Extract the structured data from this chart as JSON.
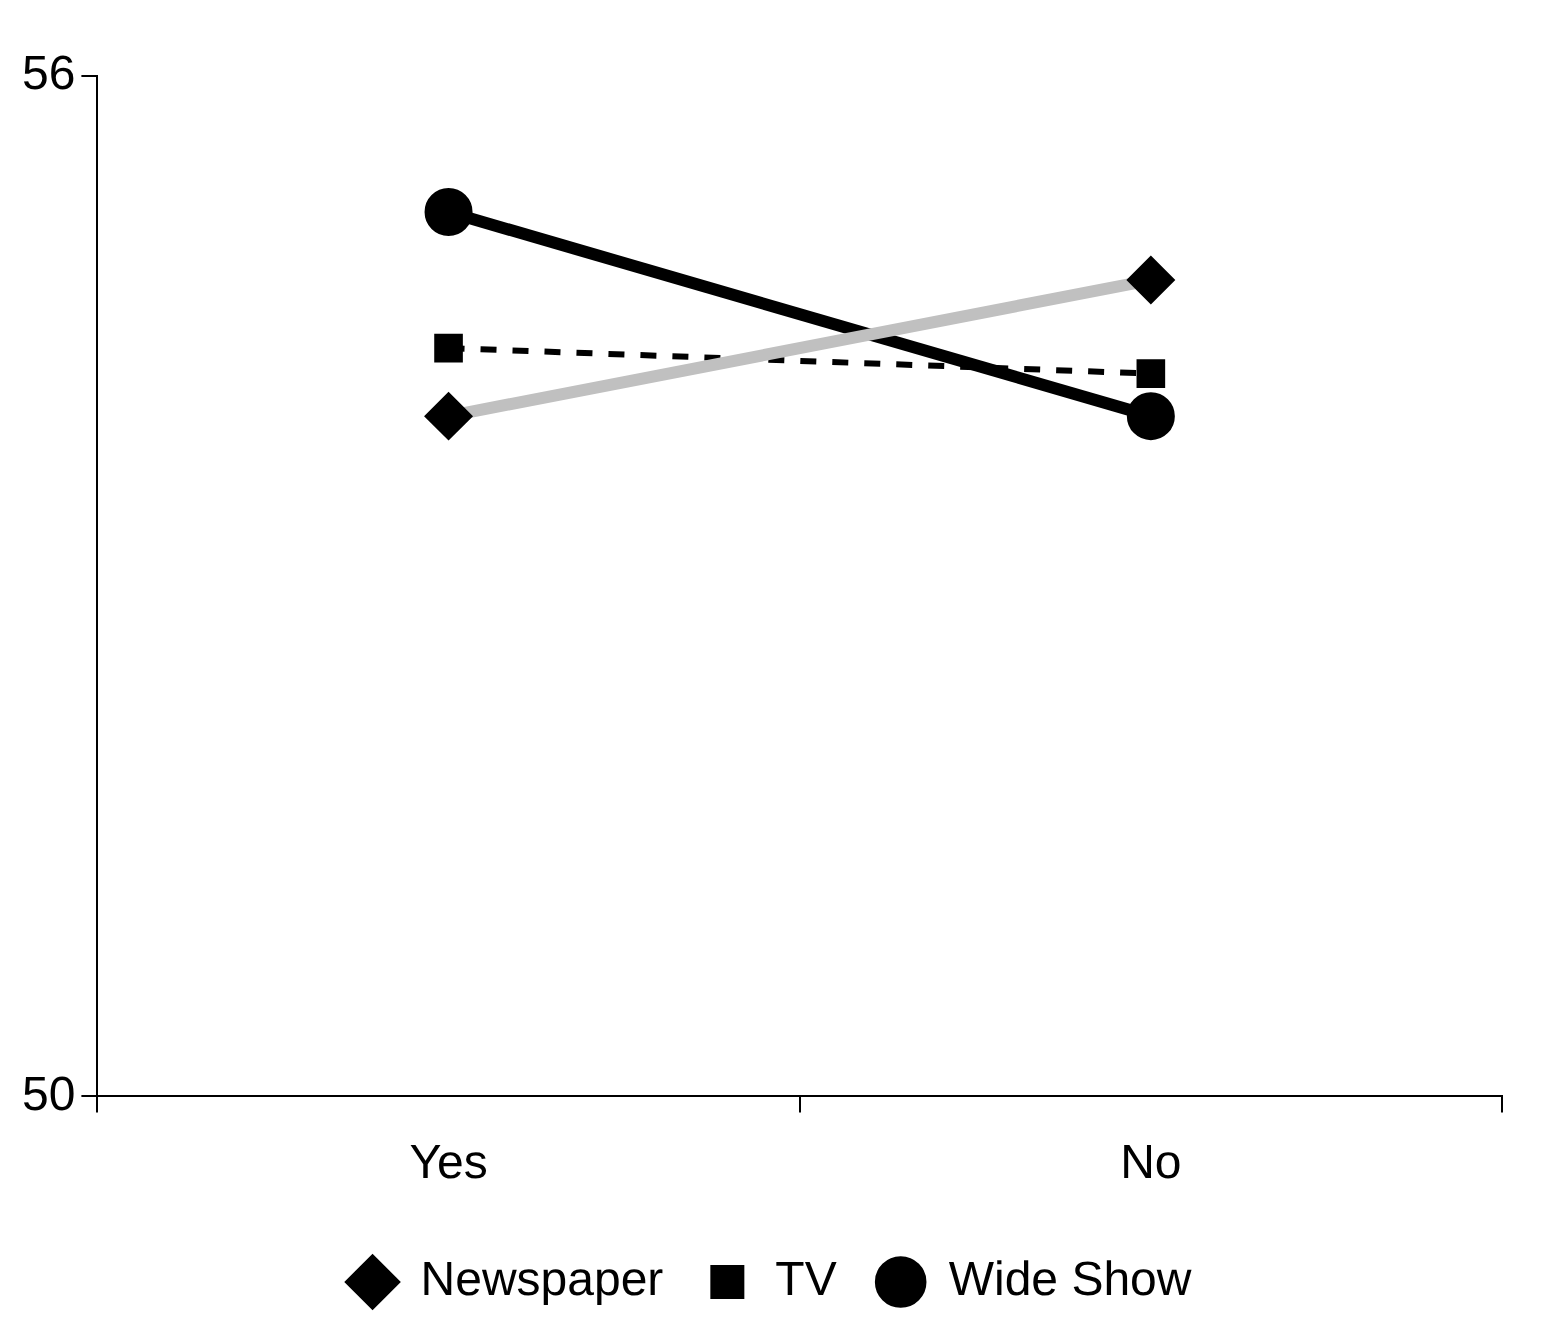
{
  "chart_data": {
    "type": "line",
    "categories": [
      "Yes",
      "No"
    ],
    "ylim": [
      50,
      56
    ],
    "yticks": [
      50,
      56
    ],
    "grid": false,
    "legend": "bottom",
    "series": [
      {
        "name": "Newspaper",
        "color": "#c0c0c0",
        "values": [
          54.0,
          54.8
        ],
        "marker": "diamond",
        "line_style": "solid"
      },
      {
        "name": "TV",
        "color": "#000000",
        "values": [
          54.4,
          54.25
        ],
        "marker": "square",
        "line_style": "dashed"
      },
      {
        "name": "Wide Show",
        "color": "#000000",
        "values": [
          55.2,
          54.0
        ],
        "marker": "circle",
        "line_style": "solid"
      }
    ]
  }
}
